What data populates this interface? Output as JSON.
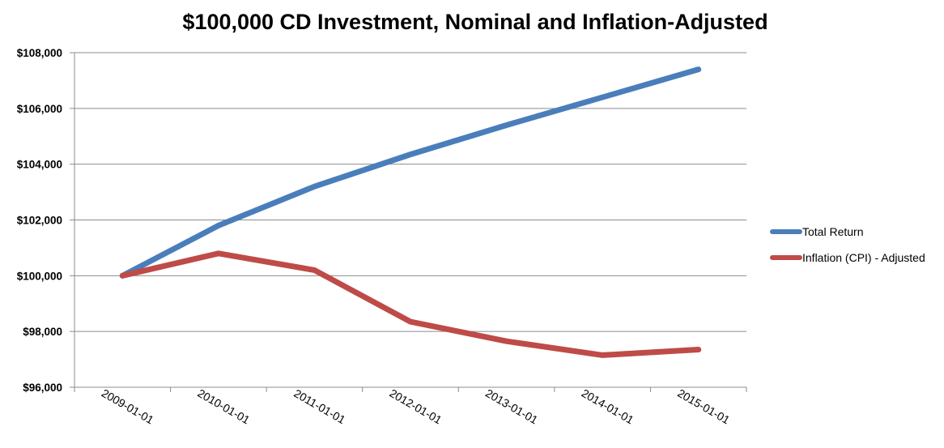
{
  "chart_data": {
    "type": "line",
    "title": "$100,000 CD Investment, Nominal and Inflation-Adjusted",
    "xlabel": "",
    "ylabel": "",
    "x": [
      "2009-01-01",
      "2010-01-01",
      "2011-01-01",
      "2012-01-01",
      "2013-01-01",
      "2014-01-01",
      "2015-01-01"
    ],
    "ylim": [
      96000,
      108000
    ],
    "yticks": [
      96000,
      98000,
      100000,
      102000,
      104000,
      106000,
      108000
    ],
    "ytick_labels": [
      "$96,000",
      "$98,000",
      "$100,000",
      "$102,000",
      "$104,000",
      "$106,000",
      "$108,000"
    ],
    "grid": true,
    "legend_position": "right",
    "series": [
      {
        "name": "Total Return",
        "color": "#4a7ebb",
        "values": [
          100000,
          101800,
          103200,
          104350,
          105400,
          106400,
          107400
        ]
      },
      {
        "name": "Inflation (CPI) - Adjusted",
        "color": "#be4b48",
        "values": [
          100000,
          100800,
          100200,
          98350,
          97650,
          97150,
          97350
        ]
      }
    ]
  }
}
